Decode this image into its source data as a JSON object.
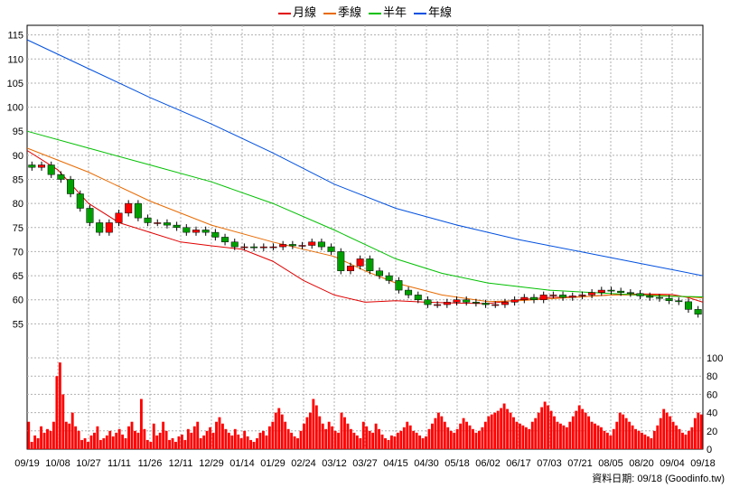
{
  "legend": [
    {
      "label": "月線",
      "color": "#e00000"
    },
    {
      "label": "季線",
      "color": "#e86a00"
    },
    {
      "label": "半年",
      "color": "#00c000"
    },
    {
      "label": "年線",
      "color": "#0050e0"
    }
  ],
  "footer": "資料日期: 09/18  (Goodinfo.tw)",
  "chart_data": {
    "type": "line",
    "price_axis": {
      "ylim": [
        50,
        117
      ],
      "ticks": [
        55,
        60,
        65,
        70,
        75,
        80,
        85,
        90,
        95,
        100,
        105,
        110,
        115
      ]
    },
    "volume_axis": {
      "ylim": [
        0,
        105
      ],
      "ticks": [
        0,
        20,
        40,
        60,
        80,
        100
      ]
    },
    "x_ticks": [
      "09/19",
      "10/08",
      "10/27",
      "11/11",
      "11/26",
      "12/11",
      "12/29",
      "01/14",
      "01/29",
      "02/24",
      "03/12",
      "03/27",
      "04/15",
      "04/30",
      "05/18",
      "06/02",
      "06/17",
      "07/03",
      "07/21",
      "08/05",
      "08/20",
      "09/04",
      "09/18"
    ],
    "grid": true,
    "series": [
      {
        "name": "月線",
        "color": "#e00000",
        "points": [
          [
            0,
            91
          ],
          [
            10,
            87
          ],
          [
            20,
            80
          ],
          [
            30,
            76
          ],
          [
            40,
            74
          ],
          [
            50,
            72
          ],
          [
            60,
            71.2
          ],
          [
            70,
            70.5
          ],
          [
            80,
            68
          ],
          [
            90,
            64
          ],
          [
            100,
            61
          ],
          [
            110,
            59.5
          ],
          [
            120,
            59.8
          ],
          [
            130,
            59.5
          ],
          [
            140,
            59.3
          ],
          [
            150,
            59.2
          ],
          [
            160,
            60
          ],
          [
            170,
            60.5
          ],
          [
            180,
            60.6
          ],
          [
            190,
            61
          ],
          [
            200,
            61.2
          ],
          [
            210,
            61.1
          ],
          [
            215,
            60.5
          ],
          [
            220,
            59.5
          ]
        ]
      },
      {
        "name": "季線",
        "color": "#e86a00",
        "points": [
          [
            0,
            91.5
          ],
          [
            20,
            86.5
          ],
          [
            40,
            80.5
          ],
          [
            60,
            75.5
          ],
          [
            80,
            72
          ],
          [
            100,
            69
          ],
          [
            110,
            66
          ],
          [
            120,
            63.5
          ],
          [
            135,
            61
          ],
          [
            150,
            59.6
          ],
          [
            160,
            59.8
          ],
          [
            175,
            60.4
          ],
          [
            190,
            61
          ],
          [
            205,
            61
          ],
          [
            220,
            60.4
          ]
        ]
      },
      {
        "name": "半年",
        "color": "#00c000",
        "points": [
          [
            0,
            95
          ],
          [
            20,
            91.5
          ],
          [
            40,
            88
          ],
          [
            60,
            84.5
          ],
          [
            80,
            80
          ],
          [
            100,
            74.5
          ],
          [
            120,
            68.5
          ],
          [
            135,
            65.5
          ],
          [
            150,
            63.5
          ],
          [
            170,
            62
          ],
          [
            190,
            61.3
          ],
          [
            205,
            60.8
          ],
          [
            220,
            60.6
          ]
        ]
      },
      {
        "name": "年線",
        "color": "#0050e0",
        "points": [
          [
            0,
            114
          ],
          [
            20,
            108
          ],
          [
            40,
            102
          ],
          [
            60,
            96.5
          ],
          [
            80,
            90.5
          ],
          [
            100,
            84
          ],
          [
            120,
            79
          ],
          [
            140,
            75.5
          ],
          [
            160,
            72.5
          ],
          [
            180,
            70
          ],
          [
            200,
            67.5
          ],
          [
            220,
            65
          ]
        ]
      }
    ],
    "closes": [
      87.5,
      88,
      86,
      85,
      82,
      79,
      76,
      74,
      76,
      78,
      80,
      77,
      76,
      76,
      75.5,
      75,
      74,
      74.5,
      74,
      73,
      72,
      71,
      71,
      70.8,
      71,
      71,
      71.5,
      71.2,
      71.3,
      72,
      71,
      70,
      66,
      67,
      68.5,
      66,
      65,
      64,
      62,
      61,
      60,
      59,
      59,
      59.5,
      60,
      59.5,
      59.3,
      59,
      59,
      59.5,
      60,
      60.5,
      60,
      61,
      61,
      60.5,
      60.8,
      61,
      61.5,
      62,
      61.8,
      61.5,
      61.3,
      60.8,
      60.5,
      60.3,
      59.8,
      59.6,
      58,
      57
    ],
    "volumes": [
      30,
      8,
      15,
      12,
      25,
      18,
      22,
      20,
      30,
      80,
      95,
      60,
      30,
      28,
      40,
      25,
      20,
      10,
      12,
      8,
      15,
      18,
      25,
      10,
      12,
      15,
      20,
      14,
      18,
      22,
      16,
      12,
      25,
      30,
      20,
      18,
      55,
      22,
      10,
      8,
      28,
      15,
      18,
      30,
      20,
      10,
      12,
      8,
      14,
      16,
      10,
      22,
      18,
      25,
      30,
      12,
      15,
      20,
      24,
      18,
      30,
      35,
      28,
      22,
      18,
      15,
      22,
      16,
      12,
      20,
      14,
      10,
      8,
      12,
      18,
      20,
      15,
      25,
      30,
      40,
      45,
      38,
      30,
      22,
      18,
      14,
      12,
      20,
      28,
      35,
      40,
      55,
      48,
      36,
      28,
      22,
      30,
      25,
      20,
      18,
      40,
      35,
      28,
      22,
      18,
      15,
      12,
      30,
      25,
      20,
      18,
      28,
      22,
      16,
      12,
      10,
      15,
      14,
      18,
      20,
      24,
      30,
      26,
      20,
      18,
      15,
      12,
      14,
      22,
      28,
      34,
      40,
      36,
      30,
      24,
      20,
      18,
      22,
      28,
      34,
      30,
      26,
      22,
      18,
      20,
      24,
      30,
      36,
      38,
      40,
      42,
      45,
      50,
      44,
      40,
      35,
      30,
      28,
      26,
      24,
      22,
      30,
      34,
      40,
      46,
      52,
      48,
      42,
      36,
      30,
      28,
      26,
      24,
      30,
      36,
      42,
      48,
      44,
      40,
      36,
      30,
      28,
      26,
      24,
      20,
      18,
      15,
      22,
      30,
      40,
      38,
      34,
      30,
      26,
      22,
      20,
      18,
      16,
      14,
      12,
      20,
      26,
      34,
      44,
      40,
      36,
      30,
      26,
      22,
      18,
      16,
      20,
      24,
      34,
      40,
      38
    ]
  }
}
